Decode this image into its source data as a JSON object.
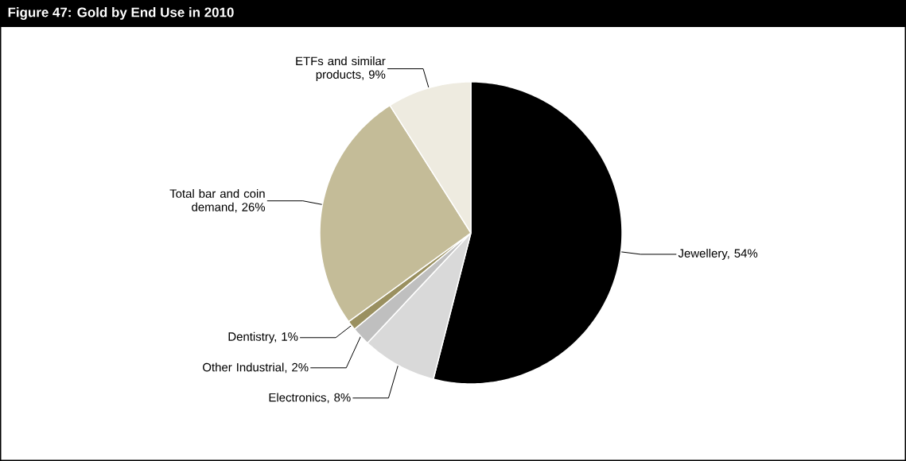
{
  "chart_data": {
    "type": "pie",
    "title": "Figure 47: Gold by End Use in 2010",
    "categories": [
      "Jewellery, 54%",
      "Electronics, 8%",
      "Other Industrial, 2%",
      "Dentistry, 1%",
      "Total bar and coin demand, 26%",
      "ETFs and similar products, 9%"
    ],
    "values": [
      54,
      8,
      2,
      1,
      26,
      9
    ],
    "colors": [
      "#000000",
      "#d9d9d9",
      "#bfbfbf",
      "#9a9060",
      "#c4bc98",
      "#eeebe0"
    ]
  }
}
